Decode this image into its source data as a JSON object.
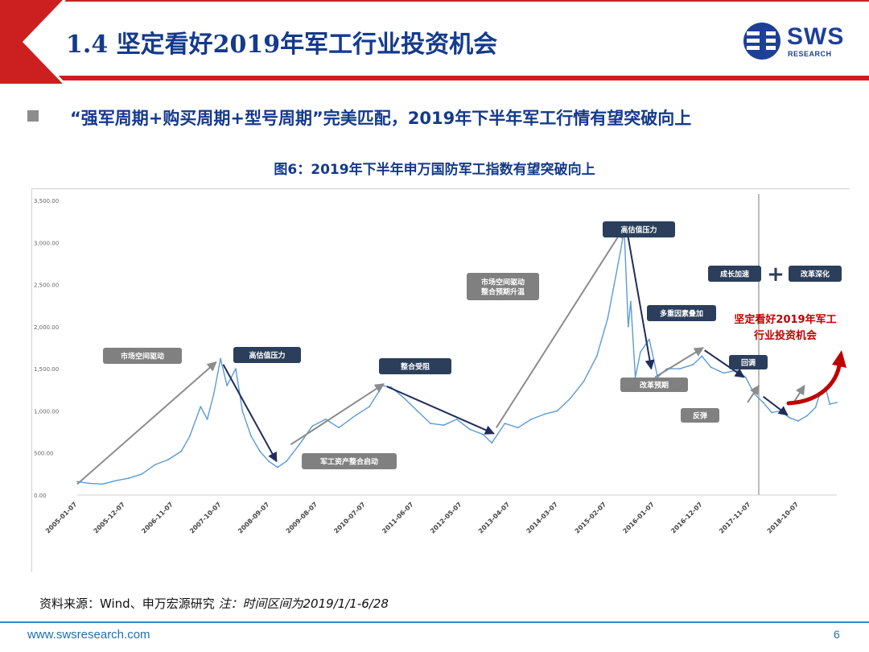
{
  "header": {
    "title": "1.4 坚定看好2019年军工行业投资机会",
    "logo_text": "SWS",
    "logo_sub": "RESEARCH"
  },
  "bullet": {
    "text": "“强军周期+购买周期+型号周期”完美匹配，2019年下半年军工行情有望突破向上"
  },
  "figure": {
    "title": "图6：2019年下半年申万国防军工指数有望突破向上"
  },
  "source": {
    "text": "资料来源：Wind、申万宏源研究",
    "note": "注：时间区间为2019/1/1-6/28"
  },
  "footer": {
    "url": "www.swsresearch.com",
    "page": "6"
  },
  "colors": {
    "primary_blue": "#143a8c",
    "line_blue": "#5b9bd5",
    "red_accent": "#c00000",
    "label_dark": "#2b3f5c",
    "label_gray": "#808080",
    "arrow_gray": "#8c8c8c",
    "arrow_navy": "#1f2d5c"
  },
  "chart_data": {
    "type": "line",
    "title": "",
    "xlabel": "",
    "ylabel": "",
    "ylim": [
      0,
      3500
    ],
    "yticks": [
      "0.00",
      "500.00",
      "1,000.00",
      "1,500.00",
      "2,000.00",
      "2,500.00",
      "3,000.00",
      "3,500.00"
    ],
    "xticks": [
      "2005-01-07",
      "2005-12-07",
      "2006-11-07",
      "2007-10-07",
      "2008-09-07",
      "2009-08-07",
      "2010-07-07",
      "2011-06-07",
      "2012-05-07",
      "2013-04-07",
      "2014-03-07",
      "2015-02-07",
      "2016-01-07",
      "2016-12-07",
      "2017-11-07",
      "2018-10-07"
    ],
    "xrange": [
      "2005-01-07",
      "2019-06-28"
    ],
    "marker_line_date": "2018-01-01",
    "series": [
      {
        "x": [
          "2005-01-07",
          "2005-04-01",
          "2005-07-01",
          "2005-10-01",
          "2006-01-01",
          "2006-04-01",
          "2006-07-01",
          "2006-10-01",
          "2007-01-01",
          "2007-03-01",
          "2007-05-15",
          "2007-07-01",
          "2007-08-15",
          "2007-10-01",
          "2007-11-15",
          "2008-01-15",
          "2008-03-01",
          "2008-05-01",
          "2008-07-01",
          "2008-09-01",
          "2008-11-01",
          "2009-01-01",
          "2009-04-01",
          "2009-07-01",
          "2009-10-01",
          "2010-01-01",
          "2010-05-01",
          "2010-08-01",
          "2010-11-01",
          "2011-01-01",
          "2011-04-01",
          "2011-07-01",
          "2011-10-01",
          "2012-01-01",
          "2012-04-01",
          "2012-07-01",
          "2012-10-01",
          "2012-12-01",
          "2013-03-01",
          "2013-06-01",
          "2013-09-01",
          "2013-12-01",
          "2014-03-01",
          "2014-06-01",
          "2014-09-01",
          "2014-12-01",
          "2015-02-15",
          "2015-04-01",
          "2015-05-15",
          "2015-06-10",
          "2015-07-08",
          "2015-07-25",
          "2015-08-26",
          "2015-10-01",
          "2015-12-01",
          "2016-01-28",
          "2016-04-01",
          "2016-07-01",
          "2016-10-01",
          "2016-12-01",
          "2017-02-01",
          "2017-05-01",
          "2017-08-01",
          "2017-10-01",
          "2017-12-01",
          "2018-02-01",
          "2018-04-01",
          "2018-06-01",
          "2018-08-01",
          "2018-10-01",
          "2018-12-01",
          "2019-01-31",
          "2019-03-01",
          "2019-04-10",
          "2019-05-10",
          "2019-06-28"
        ],
        "y": [
          160,
          140,
          130,
          170,
          200,
          250,
          360,
          420,
          520,
          700,
          1050,
          900,
          1200,
          1620,
          1300,
          1500,
          1000,
          700,
          520,
          400,
          330,
          400,
          600,
          820,
          900,
          800,
          950,
          1050,
          1300,
          1280,
          1150,
          1000,
          850,
          830,
          900,
          780,
          720,
          620,
          850,
          800,
          900,
          960,
          1000,
          1150,
          1350,
          1650,
          2100,
          2500,
          2900,
          3150,
          2000,
          2300,
          1400,
          1700,
          1850,
          1400,
          1500,
          1500,
          1550,
          1650,
          1520,
          1450,
          1480,
          1400,
          1200,
          1100,
          980,
          1000,
          920,
          880,
          940,
          1040,
          1200,
          1280,
          1080,
          1100
        ]
      }
    ],
    "annotations": {
      "label_boxes": [
        {
          "text": "市场空间驱动",
          "style": "gray"
        },
        {
          "text": "高估值压力",
          "style": "dark"
        },
        {
          "text": "军工资产整合启动",
          "style": "gray"
        },
        {
          "text": "整合受阻",
          "style": "dark"
        },
        {
          "text": "市场空间驱动\n整合预期升温",
          "style": "gray"
        },
        {
          "text": "高估值压力",
          "style": "dark"
        },
        {
          "text": "多重因素叠加",
          "style": "dark"
        },
        {
          "text": "改革预期",
          "style": "gray"
        },
        {
          "text": "成长加速",
          "style": "dark"
        },
        {
          "text": "改革深化",
          "style": "dark"
        },
        {
          "text": "回调",
          "style": "dark"
        },
        {
          "text": "反弹",
          "style": "gray"
        }
      ],
      "plus_symbol": "+",
      "red_text": "坚定看好2019年军工\n行业投资机会"
    }
  }
}
